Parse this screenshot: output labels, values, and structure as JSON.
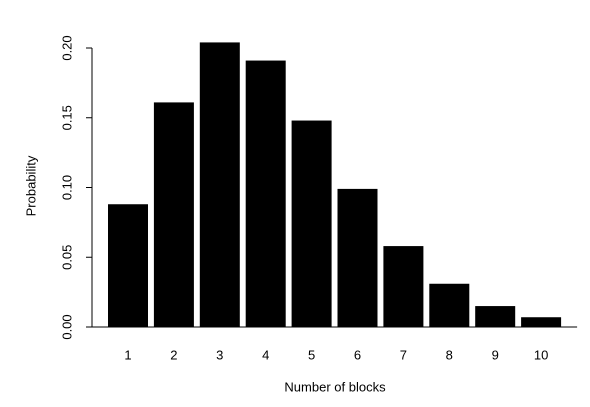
{
  "chart_data": {
    "type": "bar",
    "x_label": "Number of blocks",
    "y_label": "Probability",
    "categories": [
      "1",
      "2",
      "3",
      "4",
      "5",
      "6",
      "7",
      "8",
      "9",
      "10"
    ],
    "values": [
      0.088,
      0.161,
      0.204,
      0.191,
      0.148,
      0.099,
      0.058,
      0.031,
      0.015,
      0.007
    ],
    "color": "#000000",
    "ylim": [
      0,
      0.2
    ],
    "yticks": [
      {
        "value": 0,
        "label": "0.00"
      },
      {
        "value": 0.05,
        "label": "0.05"
      },
      {
        "value": 0.1,
        "label": "0.10"
      },
      {
        "value": 0.15,
        "label": "0.15"
      },
      {
        "value": 0.2,
        "label": "0.20"
      }
    ]
  }
}
